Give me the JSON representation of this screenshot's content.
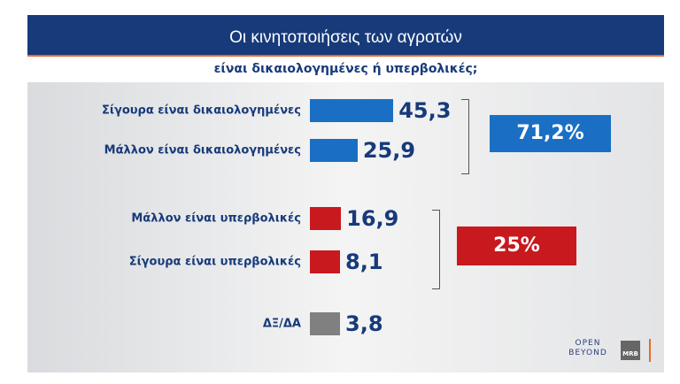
{
  "header": {
    "title": "Οι κινητοποιήσεις των αγροτών",
    "subtitle": "είναι δικαιολογημένες ή υπερβολικές;"
  },
  "chart_data": {
    "type": "bar",
    "orientation": "horizontal",
    "categories": [
      "Σίγουρα είναι δικαιολογημένες",
      "Μάλλον είναι δικαιολογημένες",
      "Μάλλον είναι υπερβολικές",
      "Σίγουρα είναι υπερβολικές",
      "ΔΞ/ΔΑ"
    ],
    "values": [
      45.3,
      25.9,
      16.9,
      8.1,
      3.8
    ],
    "value_labels": [
      "45,3",
      "25,9",
      "16,9",
      "8,1",
      "3,8"
    ],
    "colors": [
      "#1a6fc4",
      "#1a6fc4",
      "#c8191e",
      "#c8191e",
      "#808080"
    ],
    "groups": [
      {
        "label": "71,2%",
        "color": "#1a6fc4"
      },
      {
        "label": "25%",
        "color": "#c8191e"
      }
    ]
  },
  "logos": {
    "open": "OPEN BEYOND",
    "mrb": "MRB"
  }
}
